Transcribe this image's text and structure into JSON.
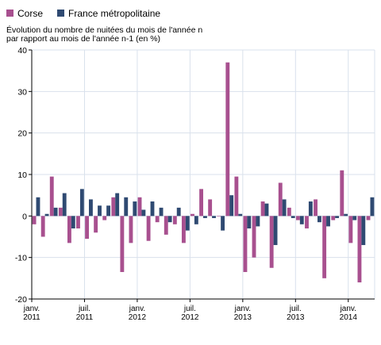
{
  "chart_data": {
    "type": "bar",
    "ylabel": "Évolution du nombre de nuitées du mois de l'année n par rapport au mois de l'année n-1 (en %)",
    "ylabel_lines": [
      "Évolution du nombre de nuitées du mois de l'année n",
      "par rapport au mois de l'année n-1 (en %)"
    ],
    "ylim": [
      -20,
      40
    ],
    "yticks": [
      -20,
      -10,
      0,
      10,
      20,
      30,
      40
    ],
    "grid": true,
    "legend": "top-left",
    "x_tick_labels": [
      {
        "index": 0,
        "line1": "janv.",
        "line2": "2011"
      },
      {
        "index": 6,
        "line1": "juil.",
        "line2": "2011"
      },
      {
        "index": 12,
        "line1": "janv.",
        "line2": "2012"
      },
      {
        "index": 18,
        "line1": "juil.",
        "line2": "2012"
      },
      {
        "index": 24,
        "line1": "janv.",
        "line2": "2013"
      },
      {
        "index": 30,
        "line1": "juil.",
        "line2": "2013"
      },
      {
        "index": 36,
        "line1": "janv.",
        "line2": "2014"
      }
    ],
    "series": [
      {
        "name": "Corse",
        "color": "#a8508f",
        "values": [
          -2,
          -5,
          9.5,
          2,
          -6.5,
          -3,
          -5.5,
          -4,
          -1,
          4.5,
          -13.5,
          -6.5,
          4.5,
          -6,
          -1.5,
          -4.5,
          -2,
          -6.5,
          0.5,
          6.5,
          4,
          0,
          37,
          9.5,
          -13.5,
          -10,
          3.5,
          -12.5,
          8,
          2,
          -1,
          -3,
          4,
          -15,
          -1,
          11,
          -6.5,
          -16,
          -1
        ]
      },
      {
        "name": "France métropolitaine",
        "color": "#2f4a72",
        "values": [
          4.5,
          0.5,
          2,
          5.5,
          -3,
          6.5,
          4,
          2.5,
          2.5,
          5.5,
          4.5,
          3.5,
          1.5,
          3.5,
          2,
          -1.5,
          2,
          -3.5,
          -2,
          -0.5,
          -0.5,
          -3.5,
          5,
          0.5,
          -3,
          -2.5,
          3,
          -7,
          4,
          -0.5,
          -2,
          3.5,
          -1.5,
          -2.5,
          -0.5,
          0.5,
          -1,
          -7,
          4.5
        ]
      }
    ]
  }
}
